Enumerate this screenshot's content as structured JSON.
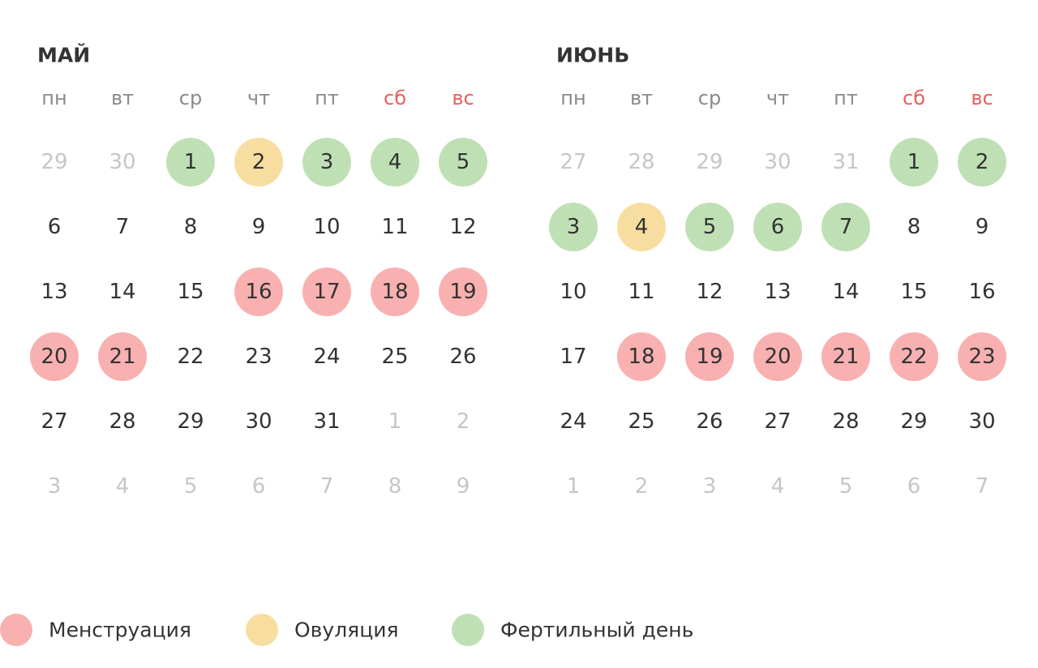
{
  "months": [
    {
      "title": "МАЙ",
      "weekdays": [
        {
          "label": "пн",
          "color": "#8a8a8a"
        },
        {
          "label": "вт",
          "color": "#8a8a8a"
        },
        {
          "label": "ср",
          "color": "#8a8a8a"
        },
        {
          "label": "чт",
          "color": "#8a8a8a"
        },
        {
          "label": "пт",
          "color": "#8a8a8a"
        },
        {
          "label": "сб",
          "color": "#e8605e"
        },
        {
          "label": "вс",
          "color": "#e8605e"
        }
      ],
      "weeks": [
        [
          {
            "day": 29,
            "color": "#c6c6c6"
          },
          {
            "day": 30,
            "color": "#c6c6c6"
          },
          {
            "day": 1,
            "fill": "#bfe0b5"
          },
          {
            "day": 2,
            "fill": "#f7dea0"
          },
          {
            "day": 3,
            "fill": "#bfe0b5"
          },
          {
            "day": 4,
            "fill": "#bfe0b5"
          },
          {
            "day": 5,
            "fill": "#bfe0b5"
          }
        ],
        [
          {
            "day": 6
          },
          {
            "day": 7
          },
          {
            "day": 8
          },
          {
            "day": 9
          },
          {
            "day": 10
          },
          {
            "day": 11
          },
          {
            "day": 12
          }
        ],
        [
          {
            "day": 13
          },
          {
            "day": 14
          },
          {
            "day": 15
          },
          {
            "day": 16,
            "fill": "#f9b0b0"
          },
          {
            "day": 17,
            "fill": "#f9b0b0"
          },
          {
            "day": 18,
            "fill": "#f9b0b0"
          },
          {
            "day": 19,
            "fill": "#f9b0b0"
          }
        ],
        [
          {
            "day": 20,
            "fill": "#f9b0b0"
          },
          {
            "day": 21,
            "fill": "#f9b0b0"
          },
          {
            "day": 22
          },
          {
            "day": 23
          },
          {
            "day": 24
          },
          {
            "day": 25
          },
          {
            "day": 26
          }
        ],
        [
          {
            "day": 27
          },
          {
            "day": 28
          },
          {
            "day": 29
          },
          {
            "day": 30
          },
          {
            "day": 31
          },
          {
            "day": 1,
            "color": "#c6c6c6"
          },
          {
            "day": 2,
            "color": "#c6c6c6"
          }
        ],
        [
          {
            "day": 3,
            "color": "#c6c6c6"
          },
          {
            "day": 4,
            "color": "#c6c6c6"
          },
          {
            "day": 5,
            "color": "#c6c6c6"
          },
          {
            "day": 6,
            "color": "#c6c6c6"
          },
          {
            "day": 7,
            "color": "#c6c6c6"
          },
          {
            "day": 8,
            "color": "#c6c6c6"
          },
          {
            "day": 9,
            "color": "#c6c6c6"
          }
        ]
      ]
    },
    {
      "title": "ИЮНЬ",
      "weekdays": [
        {
          "label": "пн",
          "color": "#8a8a8a"
        },
        {
          "label": "вт",
          "color": "#8a8a8a"
        },
        {
          "label": "ср",
          "color": "#8a8a8a"
        },
        {
          "label": "чт",
          "color": "#8a8a8a"
        },
        {
          "label": "пт",
          "color": "#8a8a8a"
        },
        {
          "label": "сб",
          "color": "#e8605e"
        },
        {
          "label": "вс",
          "color": "#e8605e"
        }
      ],
      "weeks": [
        [
          {
            "day": 27,
            "color": "#c6c6c6"
          },
          {
            "day": 28,
            "color": "#c6c6c6"
          },
          {
            "day": 29,
            "color": "#c6c6c6"
          },
          {
            "day": 30,
            "color": "#c6c6c6"
          },
          {
            "day": 31,
            "color": "#c6c6c6"
          },
          {
            "day": 1,
            "fill": "#bfe0b5"
          },
          {
            "day": 2,
            "fill": "#bfe0b5"
          }
        ],
        [
          {
            "day": 3,
            "fill": "#bfe0b5"
          },
          {
            "day": 4,
            "fill": "#f7dea0"
          },
          {
            "day": 5,
            "fill": "#bfe0b5"
          },
          {
            "day": 6,
            "fill": "#bfe0b5"
          },
          {
            "day": 7,
            "fill": "#bfe0b5"
          },
          {
            "day": 8
          },
          {
            "day": 9
          }
        ],
        [
          {
            "day": 10
          },
          {
            "day": 11
          },
          {
            "day": 12
          },
          {
            "day": 13
          },
          {
            "day": 14
          },
          {
            "day": 15
          },
          {
            "day": 16
          }
        ],
        [
          {
            "day": 17
          },
          {
            "day": 18,
            "fill": "#f9b0b0"
          },
          {
            "day": 19,
            "fill": "#f9b0b0"
          },
          {
            "day": 20,
            "fill": "#f9b0b0"
          },
          {
            "day": 21,
            "fill": "#f9b0b0"
          },
          {
            "day": 22,
            "fill": "#f9b0b0"
          },
          {
            "day": 23,
            "fill": "#f9b0b0"
          }
        ],
        [
          {
            "day": 24
          },
          {
            "day": 25
          },
          {
            "day": 26
          },
          {
            "day": 27
          },
          {
            "day": 28
          },
          {
            "day": 29
          },
          {
            "day": 30
          }
        ],
        [
          {
            "day": 1,
            "color": "#c6c6c6"
          },
          {
            "day": 2,
            "color": "#c6c6c6"
          },
          {
            "day": 3,
            "color": "#c6c6c6"
          },
          {
            "day": 4,
            "color": "#c6c6c6"
          },
          {
            "day": 5,
            "color": "#c6c6c6"
          },
          {
            "day": 6,
            "color": "#c6c6c6"
          },
          {
            "day": 7,
            "color": "#c6c6c6"
          }
        ]
      ]
    }
  ],
  "legend": [
    {
      "label": "Менструация",
      "color": "#f9b0b0"
    },
    {
      "label": "Овуляция",
      "color": "#f7dea0"
    },
    {
      "label": "Фертильный день",
      "color": "#bfe0b5"
    }
  ]
}
